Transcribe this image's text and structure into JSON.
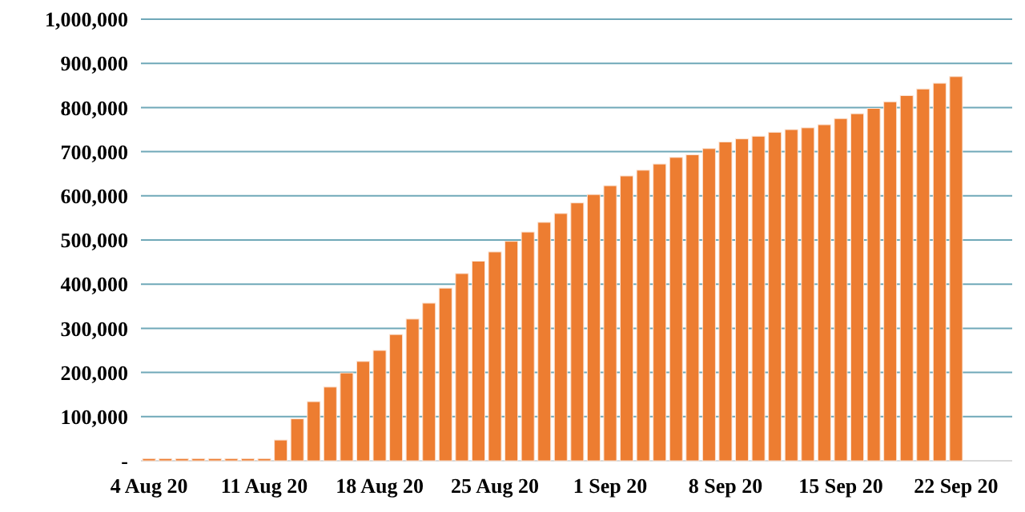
{
  "chart_data": {
    "type": "bar",
    "categories": [
      "4 Aug 20",
      null,
      null,
      null,
      null,
      null,
      null,
      "11 Aug 20",
      null,
      null,
      null,
      null,
      null,
      null,
      "18 Aug 20",
      null,
      null,
      null,
      null,
      null,
      null,
      "25 Aug 20",
      null,
      null,
      null,
      null,
      null,
      null,
      "1 Sep 20",
      null,
      null,
      null,
      null,
      null,
      null,
      "8 Sep 20",
      null,
      null,
      null,
      null,
      null,
      null,
      "15 Sep 20",
      null,
      null,
      null,
      null,
      null,
      null,
      "22 Sep 20"
    ],
    "values": [
      5000,
      5000,
      5000,
      5000,
      5000,
      5000,
      5000,
      5000,
      47000,
      95000,
      134000,
      167000,
      199000,
      225000,
      250000,
      286000,
      321000,
      357000,
      391000,
      424000,
      452000,
      473000,
      497000,
      518000,
      540000,
      560000,
      584000,
      603000,
      623000,
      645000,
      658000,
      672000,
      687000,
      693000,
      707000,
      722000,
      729000,
      735000,
      744000,
      750000,
      754000,
      761000,
      775000,
      786000,
      798000,
      813000,
      827000,
      842000,
      855000,
      870000
    ],
    "color": "#ed7d31",
    "ylim": [
      0,
      1000000
    ],
    "yticks": [
      {
        "value": 0,
        "label": "-"
      },
      {
        "value": 100000,
        "label": "100,000"
      },
      {
        "value": 200000,
        "label": "200,000"
      },
      {
        "value": 300000,
        "label": "300,000"
      },
      {
        "value": 400000,
        "label": "400,000"
      },
      {
        "value": 500000,
        "label": "500,000"
      },
      {
        "value": 600000,
        "label": "600,000"
      },
      {
        "value": 700000,
        "label": "700,000"
      },
      {
        "value": 800000,
        "label": "800,000"
      },
      {
        "value": 900000,
        "label": "900,000"
      },
      {
        "value": 1000000,
        "label": "1,000,000"
      }
    ],
    "grid": "y"
  }
}
